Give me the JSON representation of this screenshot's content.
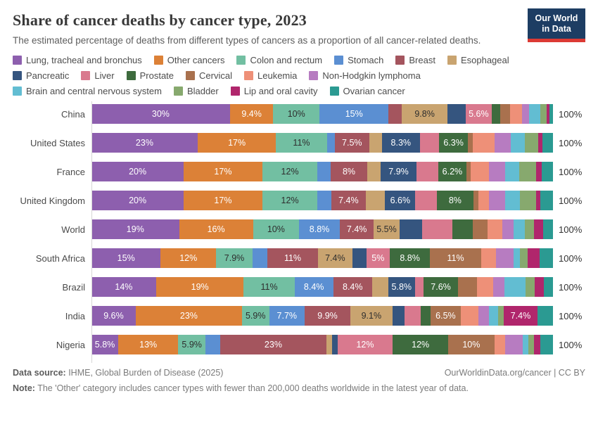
{
  "header": {
    "title": "Share of cancer deaths by cancer type, 2023",
    "subtitle": "The estimated percentage of deaths from different types of cancers as a proportion of all cancer-related deaths.",
    "logo_line1": "Our World",
    "logo_line2": "in Data"
  },
  "colors": {
    "logo_background": "#1d3d63",
    "logo_stripe": "#dc3a34",
    "axis_line": "#d6d6d6"
  },
  "chart_data": {
    "type": "bar",
    "variant": "horizontal-stacked",
    "unit": "%",
    "xlim": [
      0,
      100
    ],
    "right_axis_label": "100%",
    "legend_position": "top",
    "categories": [
      {
        "name": "Lung, tracheal and bronchus",
        "color": "#8d5fae",
        "dark_text": false
      },
      {
        "name": "Other cancers",
        "color": "#dc8137",
        "dark_text": false
      },
      {
        "name": "Colon and rectum",
        "color": "#72bfa2",
        "dark_text": true
      },
      {
        "name": "Stomach",
        "color": "#5b8fd2",
        "dark_text": false
      },
      {
        "name": "Breast",
        "color": "#a4555e",
        "dark_text": false
      },
      {
        "name": "Esophageal",
        "color": "#c9a470",
        "dark_text": true
      },
      {
        "name": "Pancreatic",
        "color": "#35557f",
        "dark_text": false
      },
      {
        "name": "Liver",
        "color": "#d9798e",
        "dark_text": false
      },
      {
        "name": "Prostate",
        "color": "#3e6b3e",
        "dark_text": false
      },
      {
        "name": "Cervical",
        "color": "#a9714e",
        "dark_text": false
      },
      {
        "name": "Leukemia",
        "color": "#ee9078",
        "dark_text": false
      },
      {
        "name": "Non-Hodgkin lymphoma",
        "color": "#b77cc1",
        "dark_text": false
      },
      {
        "name": "Brain and central nervous system",
        "color": "#62bdd2",
        "dark_text": false
      },
      {
        "name": "Bladder",
        "color": "#87a96e",
        "dark_text": false
      },
      {
        "name": "Lip and oral cavity",
        "color": "#b0266c",
        "dark_text": false
      },
      {
        "name": "Ovarian cancer",
        "color": "#2b9a92",
        "dark_text": false
      }
    ],
    "legend_rows": [
      [
        0,
        1,
        2,
        3,
        4,
        5
      ],
      [
        6,
        7,
        8,
        9,
        10,
        11
      ],
      [
        12,
        13,
        14,
        15
      ]
    ],
    "rows": [
      {
        "name": "China",
        "values": [
          30,
          9.4,
          10,
          15,
          2.9,
          9.8,
          4.0,
          5.6,
          1.9,
          2.1,
          2.6,
          1.5,
          2.4,
          1.4,
          0.7,
          0.7
        ],
        "labels": [
          "30%",
          "9.4%",
          "10%",
          "15%",
          "",
          "9.8%",
          "",
          "5.6%",
          "",
          "",
          "",
          "",
          "",
          "",
          "",
          ""
        ],
        "total_label": "100%"
      },
      {
        "name": "United States",
        "values": [
          23,
          17,
          11,
          1.7,
          7.5,
          2.7,
          8.3,
          4.1,
          6.3,
          1.1,
          4.7,
          3.4,
          3.1,
          2.9,
          1.0,
          2.2
        ],
        "labels": [
          "23%",
          "17%",
          "11%",
          "",
          "7.5%",
          "",
          "8.3%",
          "",
          "6.3%",
          "",
          "",
          "",
          "",
          "",
          "",
          ""
        ],
        "total_label": "100%"
      },
      {
        "name": "France",
        "values": [
          20,
          17,
          12,
          2.8,
          8,
          2.8,
          7.9,
          4.6,
          6.2,
          0.9,
          4.0,
          3.5,
          3.0,
          3.7,
          1.2,
          2.4
        ],
        "labels": [
          "20%",
          "17%",
          "12%",
          "",
          "8%",
          "",
          "7.9%",
          "",
          "6.2%",
          "",
          "",
          "",
          "",
          "",
          "",
          ""
        ],
        "total_label": "100%"
      },
      {
        "name": "United Kingdom",
        "values": [
          20,
          17,
          12,
          3.0,
          7.4,
          4.2,
          6.6,
          4.6,
          8,
          1.0,
          2.4,
          3.4,
          3.3,
          3.4,
          1.0,
          2.7
        ],
        "labels": [
          "20%",
          "17%",
          "12%",
          "",
          "7.4%",
          "",
          "6.6%",
          "",
          "8%",
          "",
          "",
          "",
          "",
          "",
          "",
          ""
        ],
        "total_label": "100%"
      },
      {
        "name": "World",
        "values": [
          19,
          16,
          10,
          8.8,
          7.4,
          5.5,
          5.0,
          6.5,
          4.4,
          3.3,
          3.1,
          2.5,
          2.4,
          2.0,
          2.0,
          2.1
        ],
        "labels": [
          "19%",
          "16%",
          "10%",
          "8.8%",
          "7.4%",
          "5.5%",
          "",
          "",
          "",
          "",
          "",
          "",
          "",
          "",
          "",
          ""
        ],
        "total_label": "100%"
      },
      {
        "name": "South Africa",
        "values": [
          15,
          12,
          7.9,
          3.2,
          11,
          7.4,
          3.1,
          5,
          8.8,
          11,
          3.3,
          3.7,
          1.5,
          1.6,
          2.6,
          2.9
        ],
        "labels": [
          "15%",
          "12%",
          "7.9%",
          "",
          "11%",
          "7.4%",
          "",
          "5%",
          "8.8%",
          "11%",
          "",
          "",
          "",
          "",
          "",
          ""
        ],
        "total_label": "100%"
      },
      {
        "name": "Brazil",
        "values": [
          14,
          19,
          11,
          8.4,
          8.4,
          3.5,
          5.8,
          1.8,
          7.6,
          4.0,
          3.5,
          2.5,
          4.5,
          2.0,
          2.1,
          1.9
        ],
        "labels": [
          "14%",
          "19%",
          "11%",
          "8.4%",
          "8.4%",
          "",
          "5.8%",
          "",
          "7.6%",
          "",
          "",
          "",
          "",
          "",
          "",
          ""
        ],
        "total_label": "100%"
      },
      {
        "name": "India",
        "values": [
          9.6,
          23,
          5.9,
          7.7,
          9.9,
          9.1,
          2.6,
          3.5,
          2.2,
          6.5,
          3.9,
          2.3,
          2.0,
          1.1,
          7.4,
          3.3
        ],
        "labels": [
          "9.6%",
          "23%",
          "5.9%",
          "7.7%",
          "9.9%",
          "9.1%",
          "",
          "",
          "",
          "6.5%",
          "",
          "",
          "",
          "",
          "7.4%",
          ""
        ],
        "total_label": "100%"
      },
      {
        "name": "Nigeria",
        "values": [
          5.8,
          13,
          5.9,
          3.2,
          23,
          1.2,
          1.2,
          12,
          12,
          10,
          2.4,
          3.8,
          1.2,
          1.2,
          1.3,
          2.8
        ],
        "labels": [
          "5.8%",
          "13%",
          "5.9%",
          "",
          "23%",
          "",
          "",
          "12%",
          "12%",
          "10%",
          "",
          "",
          "",
          "",
          "",
          ""
        ],
        "total_label": "100%"
      }
    ]
  },
  "footer": {
    "source_label": "Data source:",
    "source_text": " IHME, Global Burden of Disease (2025)",
    "rights": "OurWorldinData.org/cancer | CC BY",
    "note_label": "Note:",
    "note_text": " The 'Other' category includes cancer types with fewer than 200,000 deaths worldwide in the latest year of data."
  }
}
